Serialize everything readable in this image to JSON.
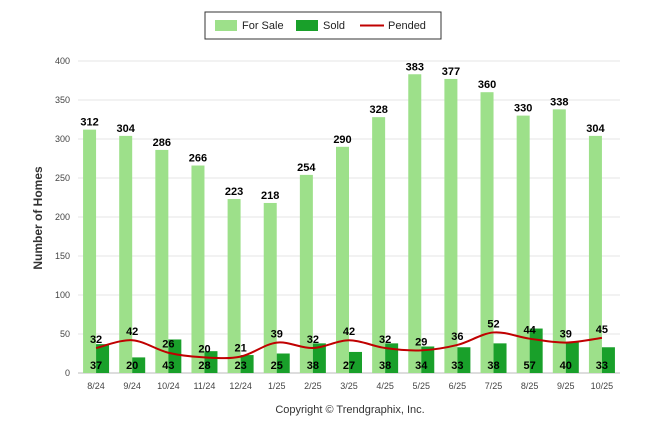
{
  "chart_data": {
    "type": "bar",
    "categories": [
      "8/24",
      "9/24",
      "10/24",
      "11/24",
      "12/24",
      "1/25",
      "2/25",
      "3/25",
      "4/25",
      "5/25",
      "6/25",
      "7/25",
      "8/25",
      "9/25",
      "10/25"
    ],
    "series": [
      {
        "name": "For Sale",
        "type": "bar",
        "color": "#9de08a",
        "values": [
          312,
          304,
          286,
          266,
          223,
          218,
          254,
          290,
          328,
          383,
          377,
          360,
          330,
          338,
          304
        ]
      },
      {
        "name": "Sold",
        "type": "bar",
        "color": "#19a02a",
        "values": [
          37,
          20,
          43,
          28,
          23,
          25,
          38,
          27,
          38,
          34,
          33,
          38,
          57,
          40,
          33
        ]
      },
      {
        "name": "Pended",
        "type": "line",
        "color": "#c00000",
        "values": [
          32,
          42,
          26,
          20,
          21,
          39,
          32,
          42,
          32,
          29,
          36,
          52,
          44,
          39,
          45
        ]
      }
    ],
    "ylabel": "Number of Homes",
    "ylim": [
      0,
      400
    ],
    "yticks": [
      0,
      50,
      100,
      150,
      200,
      250,
      300,
      350,
      400
    ],
    "grid": true,
    "legend_position": "top-center"
  },
  "footer": {
    "copyright": "Copyright © Trendgraphix, Inc."
  }
}
